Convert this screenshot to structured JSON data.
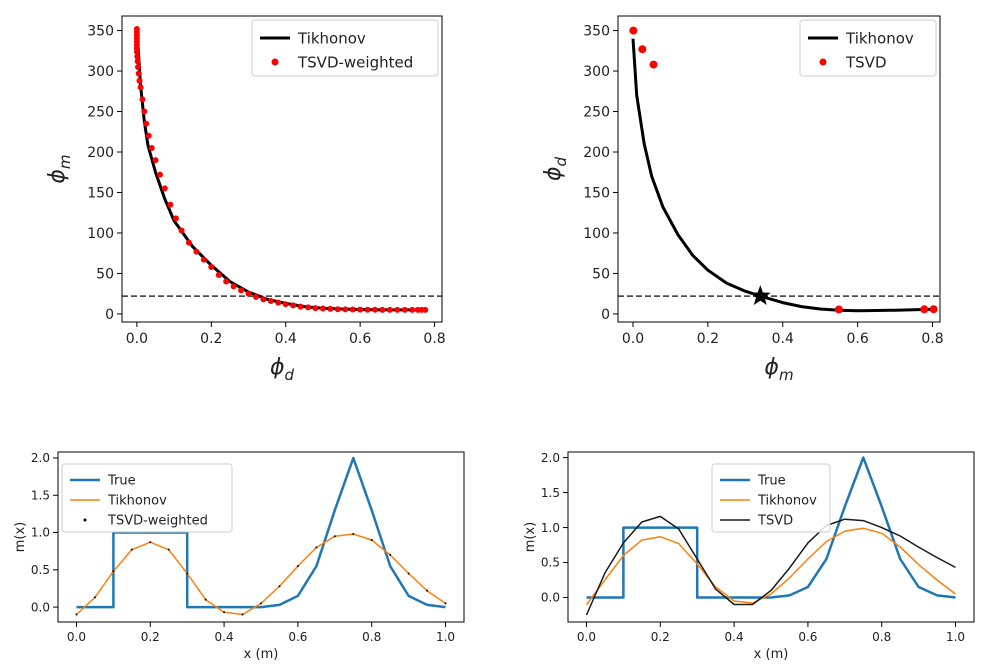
{
  "chart_data": [
    {
      "type": "line",
      "xlabel": "ϕ_d",
      "ylabel": "ϕ_m",
      "xlim": [
        -0.04,
        0.82
      ],
      "ylim": [
        -10,
        368
      ],
      "xticks": [
        0.0,
        0.2,
        0.4,
        0.6,
        0.8
      ],
      "xtick_labels": [
        "0.0",
        "0.2",
        "0.4",
        "0.6",
        "0.8"
      ],
      "yticks": [
        0,
        50,
        100,
        150,
        200,
        250,
        300,
        350
      ],
      "ytick_labels": [
        "0",
        "50",
        "100",
        "150",
        "200",
        "250",
        "300",
        "350"
      ],
      "grid": false,
      "legend": "upper right",
      "hline": {
        "y": 22,
        "style": "dashed"
      },
      "series": [
        {
          "name": "Tikhonov",
          "kind": "line",
          "color": "#000000",
          "x": [
            0.0,
            0.01,
            0.02,
            0.03,
            0.05,
            0.075,
            0.1,
            0.15,
            0.2,
            0.25,
            0.3,
            0.35,
            0.4,
            0.45,
            0.5,
            0.55,
            0.6,
            0.65,
            0.7,
            0.75,
            0.775
          ],
          "y": [
            352,
            282,
            238,
            208,
            175,
            142,
            115,
            83,
            60,
            40,
            27,
            18,
            13,
            9,
            7,
            6,
            5.5,
            5,
            5,
            5,
            5
          ]
        },
        {
          "name": "TSVD-weighted",
          "kind": "scatter",
          "color": "#ff0000",
          "x": [
            0.0,
            0.0,
            0.0,
            0.0,
            0.0,
            0.0,
            0.0,
            0.0,
            0.001,
            0.002,
            0.003,
            0.005,
            0.007,
            0.01,
            0.015,
            0.02,
            0.025,
            0.032,
            0.04,
            0.05,
            0.062,
            0.075,
            0.09,
            0.105,
            0.12,
            0.14,
            0.16,
            0.18,
            0.2,
            0.22,
            0.24,
            0.26,
            0.28,
            0.3,
            0.32,
            0.34,
            0.36,
            0.38,
            0.4,
            0.42,
            0.44,
            0.46,
            0.48,
            0.5,
            0.52,
            0.54,
            0.56,
            0.58,
            0.6,
            0.62,
            0.64,
            0.66,
            0.68,
            0.7,
            0.72,
            0.74,
            0.755,
            0.765,
            0.775
          ],
          "y": [
            352,
            348,
            344,
            340,
            336,
            332,
            328,
            324,
            318,
            312,
            305,
            297,
            288,
            280,
            265,
            250,
            235,
            220,
            205,
            190,
            172,
            155,
            135,
            118,
            103,
            88,
            77,
            67,
            58,
            48,
            40,
            34,
            29,
            25,
            21,
            18,
            16,
            14,
            12,
            10.5,
            9,
            8,
            7.2,
            6.6,
            6.2,
            5.8,
            5.6,
            5.4,
            5.3,
            5.2,
            5.1,
            5.0,
            5.0,
            5.0,
            5.0,
            5.0,
            5.0,
            5.0,
            5.0
          ]
        }
      ]
    },
    {
      "type": "line",
      "xlabel": "ϕ_m",
      "ylabel": "ϕ_d",
      "xlim": [
        -0.04,
        0.82
      ],
      "ylim": [
        -10,
        368
      ],
      "xticks": [
        0.0,
        0.2,
        0.4,
        0.6,
        0.8
      ],
      "xtick_labels": [
        "0.0",
        "0.2",
        "0.4",
        "0.6",
        "0.8"
      ],
      "yticks": [
        0,
        50,
        100,
        150,
        200,
        250,
        300,
        350
      ],
      "ytick_labels": [
        "0",
        "50",
        "100",
        "150",
        "200",
        "250",
        "300",
        "350"
      ],
      "grid": false,
      "legend": "upper right",
      "hline": {
        "y": 22,
        "style": "dashed"
      },
      "marker_star": {
        "x": 0.34,
        "y": 22
      },
      "series": [
        {
          "name": "Tikhonov",
          "kind": "line",
          "color": "#000000",
          "x": [
            0.0,
            0.01,
            0.03,
            0.05,
            0.08,
            0.12,
            0.16,
            0.2,
            0.25,
            0.3,
            0.34,
            0.4,
            0.45,
            0.5,
            0.55,
            0.6,
            0.65,
            0.7,
            0.75,
            0.8
          ],
          "y": [
            340,
            270,
            210,
            170,
            132,
            98,
            72,
            54,
            38,
            28,
            22,
            14,
            9,
            6,
            4.5,
            4,
            4.2,
            4.6,
            5.2,
            5.8
          ]
        },
        {
          "name": "TSVD",
          "kind": "scatter",
          "color": "#ff0000",
          "x": [
            0.001,
            0.025,
            0.055,
            0.55,
            0.778,
            0.803
          ],
          "y": [
            350,
            327,
            308,
            5.5,
            5.7,
            5.8
          ]
        }
      ]
    },
    {
      "type": "line",
      "xlabel": "x (m)",
      "ylabel": "m(x)",
      "xlim": [
        -0.05,
        1.05
      ],
      "ylim": [
        -0.2,
        2.08
      ],
      "xticks": [
        0.0,
        0.2,
        0.4,
        0.6,
        0.8,
        1.0
      ],
      "xtick_labels": [
        "0.0",
        "0.2",
        "0.4",
        "0.6",
        "0.8",
        "1.0"
      ],
      "yticks": [
        0.0,
        0.5,
        1.0,
        1.5,
        2.0
      ],
      "ytick_labels": [
        "0.0",
        "0.5",
        "1.0",
        "1.5",
        "2.0"
      ],
      "grid": false,
      "legend": "upper left",
      "series": [
        {
          "name": "True",
          "kind": "line",
          "color": "#1f77b4",
          "x": [
            0.0,
            0.1,
            0.1,
            0.3,
            0.3,
            0.5,
            0.55,
            0.6,
            0.65,
            0.7,
            0.75,
            0.8,
            0.85,
            0.9,
            0.95,
            1.0
          ],
          "y": [
            0.0,
            0.0,
            1.0,
            1.0,
            0.0,
            0.0,
            0.03,
            0.15,
            0.55,
            1.3,
            2.0,
            1.3,
            0.55,
            0.15,
            0.03,
            0.0
          ]
        },
        {
          "name": "Tikhonov",
          "kind": "line",
          "color": "#ff7f0e",
          "x": [
            0.0,
            0.05,
            0.1,
            0.15,
            0.2,
            0.25,
            0.3,
            0.35,
            0.4,
            0.45,
            0.5,
            0.55,
            0.6,
            0.65,
            0.7,
            0.75,
            0.8,
            0.85,
            0.9,
            0.95,
            1.0
          ],
          "y": [
            -0.1,
            0.13,
            0.48,
            0.77,
            0.87,
            0.77,
            0.45,
            0.1,
            -0.07,
            -0.1,
            0.05,
            0.28,
            0.55,
            0.8,
            0.95,
            0.98,
            0.9,
            0.7,
            0.45,
            0.22,
            0.05
          ]
        },
        {
          "name": "TSVD-weighted",
          "kind": "scatter",
          "color": "#000000",
          "x": [
            0.0,
            0.05,
            0.1,
            0.15,
            0.2,
            0.25,
            0.3,
            0.35,
            0.4,
            0.45,
            0.5,
            0.55,
            0.6,
            0.65,
            0.7,
            0.75,
            0.8,
            0.85,
            0.9,
            0.95,
            1.0
          ],
          "y": [
            -0.1,
            0.13,
            0.48,
            0.77,
            0.87,
            0.77,
            0.45,
            0.1,
            -0.07,
            -0.1,
            0.05,
            0.28,
            0.55,
            0.8,
            0.95,
            0.98,
            0.9,
            0.7,
            0.45,
            0.22,
            0.05
          ]
        }
      ]
    },
    {
      "type": "line",
      "xlabel": "x (m)",
      "ylabel": "m(x)",
      "xlim": [
        -0.05,
        1.05
      ],
      "ylim": [
        -0.35,
        2.08
      ],
      "xticks": [
        0.0,
        0.2,
        0.4,
        0.6,
        0.8,
        1.0
      ],
      "xtick_labels": [
        "0.0",
        "0.2",
        "0.4",
        "0.6",
        "0.8",
        "1.0"
      ],
      "yticks": [
        0.0,
        0.5,
        1.0,
        1.5,
        2.0
      ],
      "ytick_labels": [
        "0.0",
        "0.5",
        "1.0",
        "1.5",
        "2.0"
      ],
      "grid": false,
      "legend": "upper center",
      "series": [
        {
          "name": "True",
          "kind": "line",
          "color": "#1f77b4",
          "x": [
            0.0,
            0.1,
            0.1,
            0.3,
            0.3,
            0.5,
            0.55,
            0.6,
            0.65,
            0.7,
            0.75,
            0.8,
            0.85,
            0.9,
            0.95,
            1.0
          ],
          "y": [
            0.0,
            0.0,
            1.0,
            1.0,
            0.0,
            0.0,
            0.03,
            0.15,
            0.55,
            1.3,
            2.0,
            1.3,
            0.55,
            0.15,
            0.03,
            0.0
          ]
        },
        {
          "name": "Tikhonov",
          "kind": "line",
          "color": "#ff7f0e",
          "x": [
            0.0,
            0.05,
            0.1,
            0.15,
            0.2,
            0.25,
            0.3,
            0.35,
            0.4,
            0.45,
            0.5,
            0.55,
            0.6,
            0.65,
            0.7,
            0.75,
            0.8,
            0.85,
            0.9,
            0.95,
            1.0
          ],
          "y": [
            -0.1,
            0.25,
            0.6,
            0.82,
            0.87,
            0.77,
            0.48,
            0.15,
            -0.05,
            -0.08,
            0.05,
            0.28,
            0.55,
            0.8,
            0.95,
            0.99,
            0.92,
            0.72,
            0.47,
            0.25,
            0.05
          ]
        },
        {
          "name": "TSVD",
          "kind": "line",
          "color": "#1a1a1a",
          "x": [
            0.0,
            0.05,
            0.1,
            0.15,
            0.2,
            0.25,
            0.3,
            0.35,
            0.4,
            0.45,
            0.5,
            0.55,
            0.6,
            0.65,
            0.7,
            0.75,
            0.8,
            0.85,
            0.9,
            0.95,
            1.0
          ],
          "y": [
            -0.25,
            0.35,
            0.78,
            1.08,
            1.16,
            0.98,
            0.55,
            0.12,
            -0.1,
            -0.1,
            0.1,
            0.42,
            0.78,
            1.03,
            1.12,
            1.1,
            1.0,
            0.88,
            0.72,
            0.57,
            0.43
          ]
        }
      ]
    }
  ]
}
